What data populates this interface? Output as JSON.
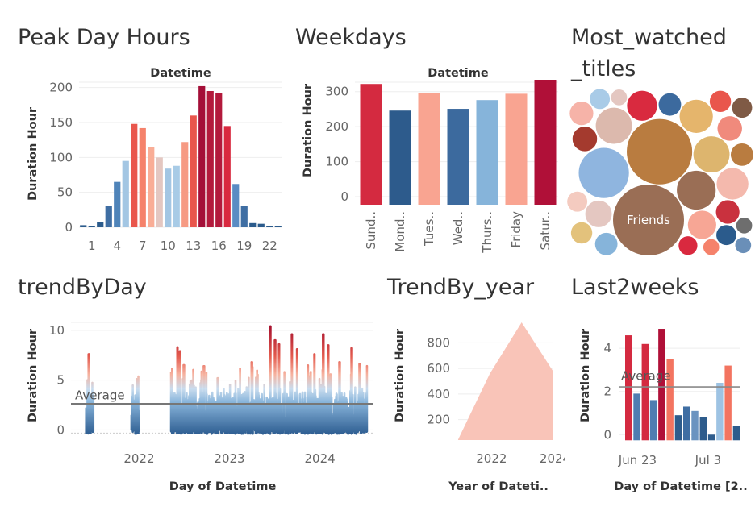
{
  "dashboard": {
    "sheets": [
      {
        "id": "peak",
        "title": "Peak Day Hours"
      },
      {
        "id": "weekdays",
        "title": "Weekdays"
      },
      {
        "id": "most",
        "title": "Most_watched",
        "title2": "_titles"
      },
      {
        "id": "trend_day",
        "title": "trendByDay"
      },
      {
        "id": "trend_year",
        "title": "TrendBy_year"
      },
      {
        "id": "last2",
        "title": "Last2weeks"
      }
    ]
  },
  "chart_data": [
    {
      "id": "peak_day_hours",
      "type": "bar",
      "column_header": "Datetime",
      "ylabel": "Duration Hour",
      "ylim": [
        0,
        210
      ],
      "yticks": [
        0,
        50,
        100,
        150,
        200
      ],
      "x": [
        0,
        1,
        2,
        3,
        4,
        5,
        6,
        7,
        8,
        9,
        10,
        11,
        12,
        13,
        14,
        15,
        16,
        17,
        18,
        19,
        20,
        21,
        22,
        23
      ],
      "xtick_labels": [
        "1",
        "4",
        "7",
        "10",
        "13",
        "16",
        "19",
        "22"
      ],
      "values": [
        3,
        2,
        8,
        30,
        65,
        95,
        148,
        142,
        115,
        100,
        84,
        88,
        122,
        160,
        202,
        195,
        192,
        145,
        62,
        30,
        6,
        5,
        2,
        1
      ],
      "colors": [
        "#2b5b8c",
        "#2b5b8c",
        "#2b5b8c",
        "#3f6ea3",
        "#4f84b9",
        "#a3c6e3",
        "#e9564c",
        "#f5826b",
        "#f9ad96",
        "#e4c7c1",
        "#a3c6e3",
        "#a8cbe6",
        "#f69a83",
        "#e9564c",
        "#a40f38",
        "#b31a3c",
        "#b31a3c",
        "#d9293f",
        "#5a8cc3",
        "#3f6ea3",
        "#2b5b8c",
        "#2b5b8c",
        "#2b5b8c",
        "#2b5b8c"
      ]
    },
    {
      "id": "weekdays",
      "type": "bar",
      "column_header": "Datetime",
      "ylabel": "Duration Hour",
      "ylim": [
        0,
        350
      ],
      "yticks": [
        0,
        100,
        200,
        300
      ],
      "categories": [
        "Sund..",
        "Mond..",
        "Tues..",
        "Wed..",
        "Thurs..",
        "Friday",
        "Satur.."
      ],
      "values": [
        338,
        262,
        312,
        267,
        292,
        310,
        350
      ],
      "colors": [
        "#d42a40",
        "#2d5b8c",
        "#f9a491",
        "#3c6a9e",
        "#86b4da",
        "#f9a491",
        "#b01038"
      ]
    },
    {
      "id": "most_watched_titles",
      "type": "bubble",
      "labels": [
        "Friends"
      ],
      "bubbles": [
        {
          "v": 1.0,
          "c": "#9a6e55",
          "label": "Friends"
        },
        {
          "v": 0.85,
          "c": "#b97c40"
        },
        {
          "v": 0.5,
          "c": "#8fb5df"
        },
        {
          "v": 0.3,
          "c": "#9a6e55"
        },
        {
          "v": 0.26,
          "c": "#ddb56e"
        },
        {
          "v": 0.26,
          "c": "#dcb9ad"
        },
        {
          "v": 0.22,
          "c": "#e5b56c"
        },
        {
          "v": 0.2,
          "c": "#f4b9ad"
        },
        {
          "v": 0.18,
          "c": "#d92a3f"
        },
        {
          "v": 0.16,
          "c": "#f7a695"
        },
        {
          "v": 0.14,
          "c": "#e4c7c1"
        },
        {
          "v": 0.12,
          "c": "#a43a2e"
        },
        {
          "v": 0.12,
          "c": "#f08a7c"
        },
        {
          "v": 0.11,
          "c": "#c9313e"
        },
        {
          "v": 0.11,
          "c": "#f6b3a8"
        },
        {
          "v": 0.1,
          "c": "#3c6a9e"
        },
        {
          "v": 0.1,
          "c": "#86b4da"
        },
        {
          "v": 0.1,
          "c": "#b97c40"
        },
        {
          "v": 0.09,
          "c": "#e9564c"
        },
        {
          "v": 0.09,
          "c": "#e3c27c"
        },
        {
          "v": 0.08,
          "c": "#2b5b8c"
        },
        {
          "v": 0.08,
          "c": "#f4cbc0"
        },
        {
          "v": 0.08,
          "c": "#a9cbe7"
        },
        {
          "v": 0.08,
          "c": "#7f5a45"
        },
        {
          "v": 0.07,
          "c": "#d9293f"
        },
        {
          "v": 0.07,
          "c": "#ecc8bc"
        },
        {
          "v": 0.07,
          "c": "#b01038"
        },
        {
          "v": 0.06,
          "c": "#e4c7c1"
        },
        {
          "v": 0.06,
          "c": "#2f8fc4"
        },
        {
          "v": 0.06,
          "c": "#f6b3a8"
        },
        {
          "v": 0.05,
          "c": "#6a8fb8"
        },
        {
          "v": 0.05,
          "c": "#f5826b"
        },
        {
          "v": 0.05,
          "c": "#e4c7c1"
        },
        {
          "v": 0.05,
          "c": "#6e6e6e"
        },
        {
          "v": 0.05,
          "c": "#a3c6e3"
        },
        {
          "v": 0.04,
          "c": "#e9564c"
        }
      ]
    },
    {
      "id": "trend_by_day",
      "type": "bar",
      "xlabel": "Day of Datetime",
      "ylabel": "Duration Hour",
      "ylim": [
        -0.7,
        10.8
      ],
      "yticks": [
        0,
        5,
        10
      ],
      "xtick_labels": [
        "2022",
        "2023",
        "2024"
      ],
      "average": 2.6,
      "average_label": "Average",
      "dense_spans": [
        {
          "from": "2021-06-01",
          "to": "2021-07-01",
          "peaks": [
            [
              "2021-06-12",
              7.6
            ],
            [
              "2021-06-20",
              3.2
            ]
          ]
        },
        {
          "from": "2021-12-01",
          "to": "2021-12-31",
          "peaks": [
            [
              "2021-12-14",
              2.4
            ]
          ]
        },
        {
          "from": "2022-05-10",
          "to": "2024-07-10",
          "peaks": [
            [
              "2022-06-05",
              8.3
            ],
            [
              "2022-06-15",
              7.9
            ],
            [
              "2022-07-01",
              6.5
            ],
            [
              "2022-09-20",
              6.4
            ],
            [
              "2022-11-15",
              5.2
            ],
            [
              "2023-04-01",
              6.8
            ],
            [
              "2023-06-15",
              10.4
            ],
            [
              "2023-07-04",
              9.0
            ],
            [
              "2023-07-20",
              8.6
            ],
            [
              "2023-09-10",
              9.6
            ],
            [
              "2023-10-01",
              8.1
            ],
            [
              "2023-12-10",
              7.6
            ],
            [
              "2024-01-15",
              9.6
            ],
            [
              "2024-02-04",
              8.5
            ],
            [
              "2024-03-20",
              6.8
            ],
            [
              "2024-05-08",
              8.2
            ],
            [
              "2024-06-10",
              6.6
            ]
          ]
        }
      ]
    },
    {
      "id": "trend_by_year",
      "type": "area",
      "xlabel": "Year of Dateti..",
      "ylabel": "Duration Hour",
      "x": [
        2021,
        2022,
        2023,
        2024
      ],
      "xtick_labels": [
        "2022",
        "2024"
      ],
      "values": [
        45,
        560,
        960,
        575
      ],
      "ylim": [
        40,
        960
      ],
      "yticks": [
        200,
        400,
        600,
        800
      ],
      "color": "#f9c4b8"
    },
    {
      "id": "last2weeks",
      "type": "bar",
      "xlabel": "Day of Datetime [2..",
      "ylabel": "Duration Hour",
      "ylim": [
        -0.4,
        5.2
      ],
      "yticks": [
        0,
        2,
        4
      ],
      "xtick_labels": [
        "Jun 23",
        "Jul 3"
      ],
      "average": 2.2,
      "average_label": "Average",
      "values": [
        4.6,
        1.9,
        4.2,
        1.6,
        4.9,
        3.5,
        0.9,
        1.3,
        1.1,
        0.8,
        0.0,
        2.4,
        3.2,
        0.4
      ],
      "colors": [
        "#d42a40",
        "#4f7db1",
        "#d42a40",
        "#4f7db1",
        "#b01038",
        "#f37460",
        "#2e5c8c",
        "#3f6ea3",
        "#6a93c0",
        "#2e5c8c",
        "#2e5c8c",
        "#9ec3e3",
        "#f37460",
        "#2e5c8c"
      ]
    }
  ]
}
